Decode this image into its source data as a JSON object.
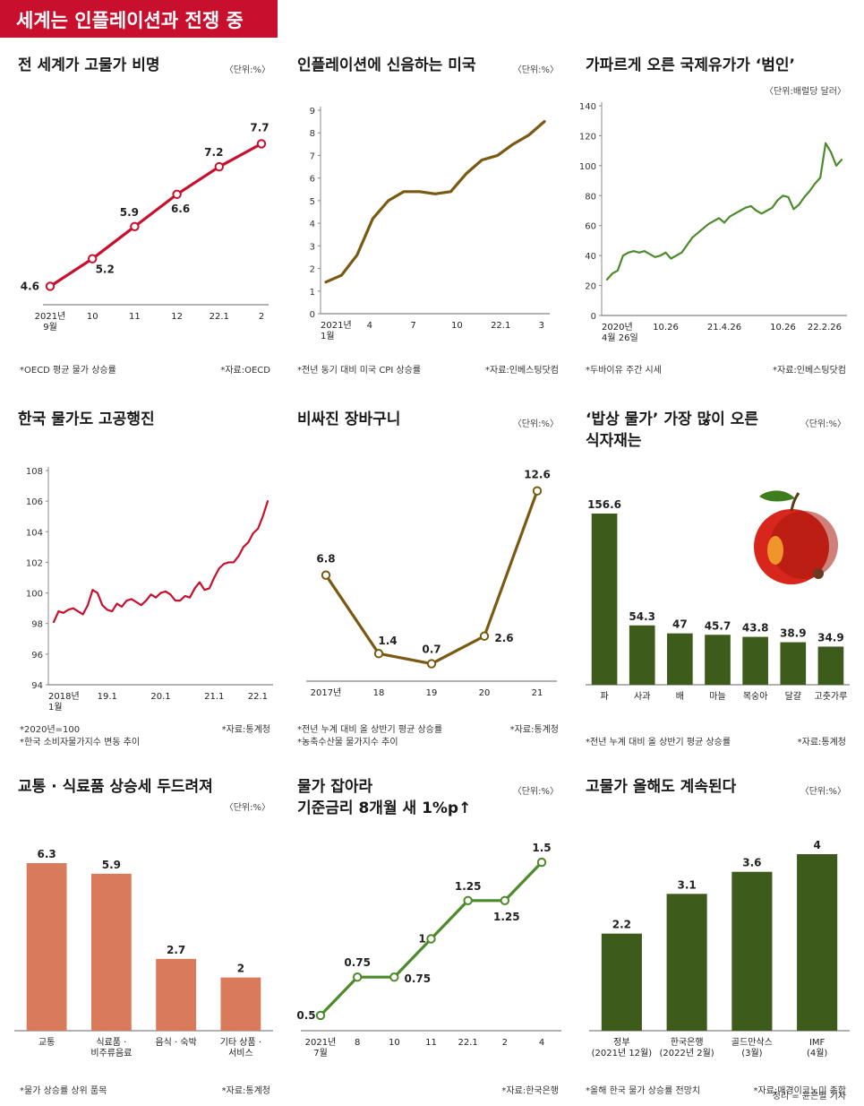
{
  "banner": "세계는 인플레이션과 전쟁 중",
  "credit": "정리 = 윤은별 기자",
  "chart_data": [
    {
      "id": "p1",
      "type": "line",
      "title": "전 세계가 고물가 비명",
      "unit": "〈단위:%〉",
      "footnote": "*OECD 평균 물가 상승률",
      "source": "*자료:OECD",
      "color": "#c8102e",
      "categories": [
        "2021년\n9월",
        "10",
        "11",
        "12",
        "22.1",
        "2"
      ],
      "values": [
        4.6,
        5.2,
        5.9,
        6.6,
        7.2,
        7.7
      ],
      "ylim": [
        4.2,
        8.0
      ]
    },
    {
      "id": "p2",
      "type": "line",
      "title": "인플레이션에 신음하는 미국",
      "unit": "〈단위:%〉",
      "footnote": "*전년 동기 대비 미국 CPI 상승률",
      "source": "*자료:인베스팅닷컴",
      "color": "#7a5a12",
      "x_ticks": [
        "2021년\n1월",
        "4",
        "7",
        "10",
        "22.1",
        "3"
      ],
      "y_ticks": [
        0,
        1,
        2,
        3,
        4,
        5,
        6,
        7,
        8,
        9
      ],
      "ylim": [
        0,
        9
      ],
      "values": [
        1.4,
        1.7,
        2.6,
        4.2,
        5.0,
        5.4,
        5.4,
        5.3,
        5.4,
        6.2,
        6.8,
        7.0,
        7.5,
        7.9,
        8.5
      ]
    },
    {
      "id": "p3",
      "type": "line",
      "title": "가파르게 오른 국제유가가 ‘범인’",
      "unit": "〈단위:배럴당 달러〉",
      "footnote": "*두바이유 주간 시세",
      "source": "*자료:인베스팅닷컴",
      "color": "#4c8a2a",
      "x_ticks": [
        "2020년\n4월 26일",
        "10.26",
        "21.4.26",
        "10.26",
        "22.2.26"
      ],
      "y_ticks": [
        0,
        20,
        40,
        60,
        80,
        100,
        120,
        140
      ],
      "ylim": [
        0,
        140
      ],
      "values": [
        24,
        28,
        30,
        40,
        42,
        43,
        42,
        43,
        41,
        39,
        40,
        42,
        38,
        40,
        42,
        47,
        52,
        55,
        58,
        61,
        63,
        65,
        62,
        66,
        68,
        70,
        72,
        73,
        70,
        68,
        70,
        72,
        77,
        80,
        79,
        71,
        74,
        79,
        83,
        88,
        92,
        115,
        109,
        100,
        104
      ]
    },
    {
      "id": "p4",
      "type": "line",
      "title": "한국 물가도 고공행진",
      "unit": "",
      "footnote": "*2020년=100",
      "footnote2": "*한국 소비자물가지수 변동 추이",
      "source": "*자료:통계청",
      "color": "#c8102e",
      "x_ticks": [
        "2018년\n1월",
        "19.1",
        "20.1",
        "21.1",
        "22.1"
      ],
      "y_ticks": [
        94,
        96,
        98,
        100,
        102,
        104,
        106,
        108
      ],
      "ylim": [
        94,
        108
      ],
      "values": [
        98.1,
        98.8,
        98.7,
        98.9,
        99.0,
        98.8,
        98.6,
        99.2,
        100.2,
        100.0,
        99.2,
        98.9,
        98.8,
        99.3,
        99.1,
        99.5,
        99.6,
        99.4,
        99.2,
        99.5,
        99.9,
        99.7,
        100.0,
        100.1,
        99.9,
        99.5,
        99.5,
        99.8,
        99.7,
        100.3,
        100.7,
        100.2,
        100.3,
        101.0,
        101.6,
        101.9,
        102.0,
        102.0,
        102.4,
        103.0,
        103.3,
        103.9,
        104.2,
        105.0,
        106.0
      ]
    },
    {
      "id": "p5",
      "type": "line",
      "title": "비싸진 장바구니",
      "unit": "〈단위:%〉",
      "footnote": "*전년 누계 대비 올 상반기 평균 상승률",
      "footnote2": "*농축수산물 물가지수 추이",
      "source": "*자료:통계청",
      "color": "#7a5a12",
      "categories": [
        "2017년",
        "18",
        "19",
        "20",
        "21"
      ],
      "values": [
        6.8,
        1.4,
        0.7,
        2.6,
        12.6
      ],
      "ylim": [
        -0.5,
        14
      ]
    },
    {
      "id": "p6",
      "type": "bar",
      "title": "‘밥상 물가’ 가장 많이 오른\n식자재는",
      "unit": "〈단위:%〉",
      "footnote": "*전년 누계 대비 올 상반기 평균 상승률",
      "source": "*자료:통계청",
      "color": "#3d5c1c",
      "categories": [
        "파",
        "사과",
        "배",
        "마늘",
        "복숭아",
        "달걀",
        "고춧가루"
      ],
      "values": [
        156.6,
        54.3,
        47,
        45.7,
        43.8,
        38.9,
        34.9
      ],
      "labels": [
        "156.6",
        "54.3",
        "47",
        "45.7",
        "43.8",
        "38.9",
        "34.9"
      ],
      "ylim": [
        0,
        156.6
      ]
    },
    {
      "id": "p7",
      "type": "bar",
      "title": "교통 · 식료품 상승세 두드려져",
      "unit": "〈단위:%〉",
      "footnote": "*물가 상승률 상위 품목",
      "source": "*자료:통계청",
      "color": "#d97b5a",
      "categories": [
        "교통",
        "식료품 ·\n비주류음료",
        "음식 · 숙박",
        "기타 상품 ·\n서비스"
      ],
      "values": [
        6.3,
        5.9,
        2.7,
        2
      ],
      "labels": [
        "6.3",
        "5.9",
        "2.7",
        "2"
      ],
      "ylim": [
        0,
        6.3
      ]
    },
    {
      "id": "p8",
      "type": "line",
      "title": "물가 잡아라\n기준금리 8개월 새 1%p↑",
      "unit": "〈단위:%〉",
      "footnote": "",
      "source": "*자료:한국은행",
      "color": "#4c8a2a",
      "categories": [
        "2021년\n7월",
        "8",
        "10",
        "11",
        "22.1",
        "2",
        "4"
      ],
      "values": [
        0.5,
        0.75,
        0.75,
        1,
        1.25,
        1.25,
        1.5
      ],
      "labels": [
        "0.5",
        "0.75",
        "0.75",
        "1",
        "1.25",
        "1.25",
        "1.5"
      ],
      "ylim": [
        0.4,
        1.6
      ]
    },
    {
      "id": "p9",
      "type": "bar",
      "title": "고물가 올해도 계속된다",
      "unit": "〈단위:%〉",
      "footnote": "*올해 한국 물가 상승률 전망치",
      "source": "*자료:매경이코노미 종합",
      "color": "#3d5c1c",
      "categories": [
        "정부\n(2021년 12월)",
        "한국은행\n(2022년 2월)",
        "골드만삭스\n(3월)",
        "IMF\n(4월)"
      ],
      "values": [
        2.2,
        3.1,
        3.6,
        4
      ],
      "labels": [
        "2.2",
        "3.1",
        "3.6",
        "4"
      ],
      "ylim": [
        0,
        4
      ]
    }
  ]
}
